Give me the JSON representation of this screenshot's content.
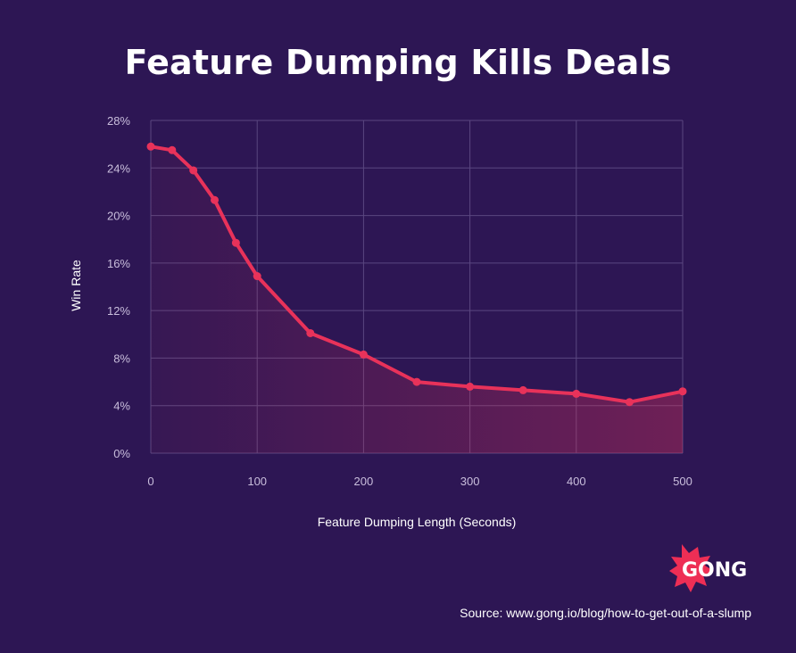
{
  "title": "Feature Dumping Kills Deals",
  "source": "Source: www.gong.io/blog/how-to-get-out-of-a-slump",
  "logo_text": "GONG",
  "colors": {
    "background": "#2d1654",
    "line": "#e8325a",
    "grid": "#5a4780",
    "logo": "#ee2e55"
  },
  "chart_data": {
    "type": "line",
    "title": "Feature Dumping Kills Deals",
    "xlabel": "Feature Dumping Length (Seconds)",
    "ylabel": "Win Rate",
    "xlim": [
      0,
      500
    ],
    "ylim": [
      0,
      28
    ],
    "x_ticks": [
      0,
      100,
      200,
      300,
      400,
      500
    ],
    "y_ticks": [
      0,
      4,
      8,
      12,
      16,
      20,
      24,
      28
    ],
    "y_tick_labels": [
      "0%",
      "4%",
      "8%",
      "12%",
      "16%",
      "20%",
      "24%",
      "28%"
    ],
    "grid": true,
    "area_fill": true,
    "series": [
      {
        "x": [
          0,
          20,
          40,
          60,
          80,
          100,
          150,
          200,
          250,
          300,
          350,
          400,
          450,
          500
        ],
        "y": [
          25.8,
          25.5,
          23.8,
          21.3,
          17.7,
          14.9,
          10.1,
          8.3,
          6.0,
          5.6,
          5.3,
          5.0,
          4.3,
          5.2
        ]
      }
    ]
  }
}
